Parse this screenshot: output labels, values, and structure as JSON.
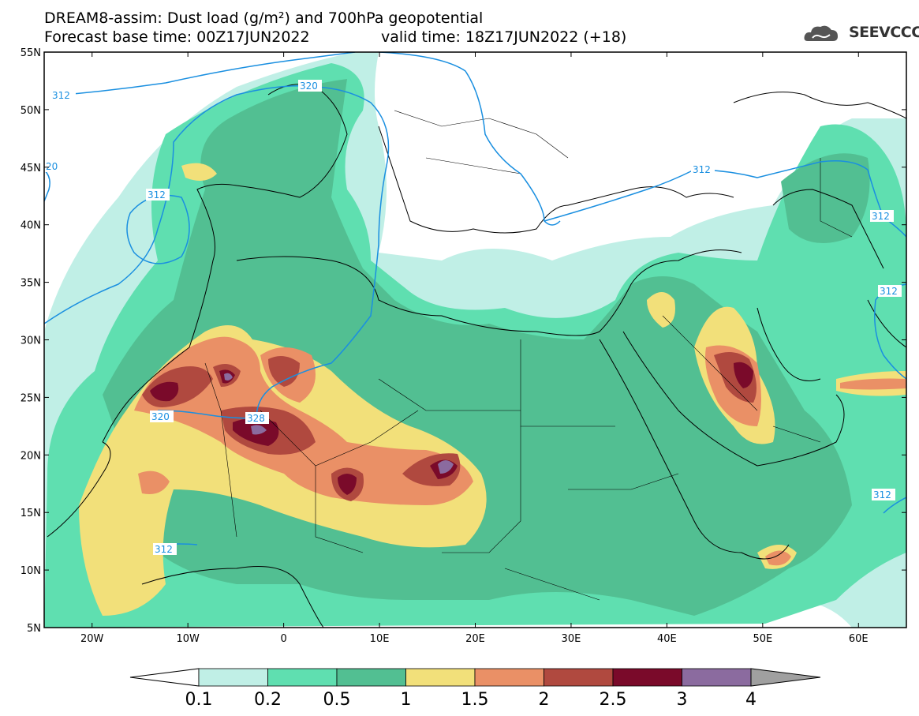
{
  "header": {
    "title_line1": "DREAM8-assim: Dust load (g/m²) and 700hPa geopotential",
    "title_line2a": "Forecast base time: 00Z17JUN2022",
    "title_line2b": "valid time: 18Z17JUN2022 (+18)",
    "logo_text": "SEEVCCC"
  },
  "axes": {
    "lat_labels": [
      "55N",
      "50N",
      "45N",
      "40N",
      "35N",
      "30N",
      "25N",
      "20N",
      "15N",
      "10N",
      "5N"
    ],
    "lon_labels": [
      "20W",
      "10W",
      "0",
      "10E",
      "20E",
      "30E",
      "40E",
      "50E",
      "60E"
    ],
    "lon_range": [
      -25,
      65
    ],
    "lat_range": [
      5,
      55
    ]
  },
  "contours": {
    "labels": [
      "312",
      "320",
      "20",
      "312",
      "320",
      "328",
      "312",
      "312",
      "312",
      "312",
      "312"
    ]
  },
  "colorbar": {
    "levels": [
      "0.1",
      "0.2",
      "0.5",
      "1",
      "1.5",
      "2",
      "2.5",
      "3",
      "4"
    ],
    "colors": [
      "#c0efe6",
      "#5fdfb0",
      "#52bf92",
      "#f2e07a",
      "#ea9066",
      "#b0493f",
      "#7a0a2a",
      "#8b6b9f",
      "#a0a0a0"
    ]
  }
}
